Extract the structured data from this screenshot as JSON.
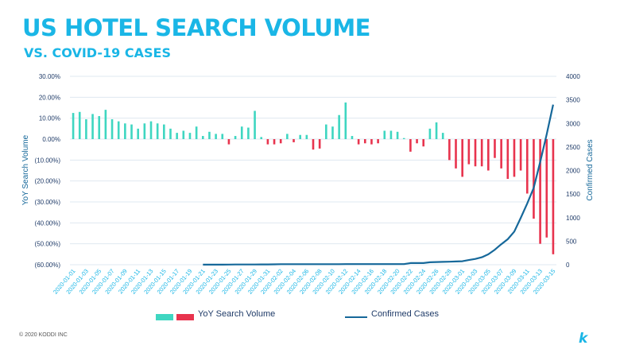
{
  "header": {
    "title": "US HOTEL SEARCH VOLUME",
    "subtitle": "VS. COVID-19 CASES"
  },
  "footer": {
    "copyright": "© 2020 KODDI INC",
    "logo_glyph": "k"
  },
  "colors": {
    "accent": "#1ab6e6",
    "positive": "#3fd6c1",
    "negative": "#e8344e",
    "line": "#16689a",
    "axis_text": "#1f3b68",
    "grid": "#dfe8f0"
  },
  "chart_data": {
    "type": "bar+line",
    "categories": [
      "2020-01-01",
      "2020-01-02",
      "2020-01-03",
      "2020-01-04",
      "2020-01-05",
      "2020-01-06",
      "2020-01-07",
      "2020-01-08",
      "2020-01-09",
      "2020-01-10",
      "2020-01-11",
      "2020-01-12",
      "2020-01-13",
      "2020-01-14",
      "2020-01-15",
      "2020-01-16",
      "2020-01-17",
      "2020-01-18",
      "2020-01-19",
      "2020-01-20",
      "2020-01-21",
      "2020-01-22",
      "2020-01-23",
      "2020-01-24",
      "2020-01-25",
      "2020-01-26",
      "2020-01-27",
      "2020-01-28",
      "2020-01-29",
      "2020-01-30",
      "2020-01-31",
      "2020-02-01",
      "2020-02-02",
      "2020-02-03",
      "2020-02-04",
      "2020-02-05",
      "2020-02-06",
      "2020-02-07",
      "2020-02-08",
      "2020-02-09",
      "2020-02-10",
      "2020-02-11",
      "2020-02-12",
      "2020-02-13",
      "2020-02-14",
      "2020-02-15",
      "2020-02-16",
      "2020-02-17",
      "2020-02-18",
      "2020-02-19",
      "2020-02-20",
      "2020-02-21",
      "2020-02-22",
      "2020-02-23",
      "2020-02-24",
      "2020-02-25",
      "2020-02-26",
      "2020-02-27",
      "2020-02-28",
      "2020-02-29",
      "2020-03-01",
      "2020-03-02",
      "2020-03-03",
      "2020-03-04",
      "2020-03-05",
      "2020-03-06",
      "2020-03-07",
      "2020-03-08",
      "2020-03-09",
      "2020-03-10",
      "2020-03-11",
      "2020-03-12",
      "2020-03-13",
      "2020-03-14",
      "2020-03-15"
    ],
    "x_tick_labels": [
      "2020-01-01",
      "2020-01-03",
      "2020-01-05",
      "2020-01-07",
      "2020-01-09",
      "2020-01-11",
      "2020-01-13",
      "2020-01-15",
      "2020-01-17",
      "2020-01-19",
      "2020-01-21",
      "2020-01-23",
      "2020-01-25",
      "2020-01-27",
      "2020-01-29",
      "2020-01-31",
      "2020-02-02",
      "2020-02-04",
      "2020-02-06",
      "2020-02-08",
      "2020-02-10",
      "2020-02-12",
      "2020-02-14",
      "2020-02-16",
      "2020-02-18",
      "2020-02-20",
      "2020-02-22",
      "2020-02-24",
      "2020-02-26",
      "2020-02-28",
      "2020-03-01",
      "2020-03-03",
      "2020-03-05",
      "2020-03-07",
      "2020-03-09",
      "2020-03-11",
      "2020-03-13",
      "2020-03-15"
    ],
    "series": [
      {
        "name": "YoY Search Volume",
        "type": "bar",
        "axis": "left",
        "unit": "%",
        "values": [
          12.5,
          13,
          9.5,
          12,
          11,
          14,
          9.5,
          8.5,
          7.5,
          7,
          5,
          7.5,
          8.5,
          7.5,
          7,
          5,
          3,
          4,
          3,
          6,
          1.5,
          3.5,
          2.5,
          2.5,
          -2.5,
          1.5,
          6,
          5.5,
          13.5,
          1,
          -2.5,
          -2.5,
          -2,
          2.5,
          -1.5,
          2,
          2,
          -5,
          -4.5,
          7,
          6,
          11.5,
          17.5,
          1.5,
          -2.5,
          -2,
          -2.5,
          -2,
          4,
          4,
          3.5,
          0.5,
          -6,
          -2,
          -3.5,
          5,
          8,
          3,
          -10,
          -14,
          -18,
          -12,
          -13,
          -13,
          -15,
          -9,
          -14,
          -19,
          -18,
          -15,
          -26,
          -38,
          -50,
          -47,
          -55
        ]
      },
      {
        "name": "Confirmed Cases",
        "type": "line",
        "axis": "right",
        "values": [
          null,
          null,
          null,
          null,
          null,
          null,
          null,
          null,
          null,
          null,
          null,
          null,
          null,
          null,
          null,
          null,
          null,
          null,
          null,
          null,
          1,
          1,
          1,
          2,
          3,
          5,
          5,
          5,
          5,
          6,
          7,
          8,
          11,
          11,
          11,
          11,
          11,
          11,
          11,
          11,
          12,
          12,
          13,
          13,
          13,
          13,
          13,
          13,
          13,
          13,
          13,
          14,
          35,
          35,
          35,
          53,
          57,
          60,
          64,
          69,
          75,
          100,
          124,
          158,
          221,
          319,
          435,
          541,
          704,
          994,
          1301,
          1630,
          2183,
          2770,
          3400
        ]
      }
    ],
    "y_left": {
      "label": "YoY Search Volume",
      "min": -60,
      "max": 30,
      "ticks": [
        "30.00%",
        "20.00%",
        "10.00%",
        "0.00%",
        "(10.00%)",
        "(20.00%)",
        "(30.00%)",
        "(40.00%)",
        "(50.00%)",
        "(60.00%)"
      ]
    },
    "y_right": {
      "label": "Confirmed Cases",
      "min": 0,
      "max": 4000,
      "ticks": [
        "4000",
        "3500",
        "3000",
        "2500",
        "2000",
        "1500",
        "1000",
        "500",
        "0"
      ]
    },
    "legend": {
      "position": "bottom",
      "bar_label": "YoY Search Volume",
      "line_label": "Confirmed Cases"
    }
  }
}
